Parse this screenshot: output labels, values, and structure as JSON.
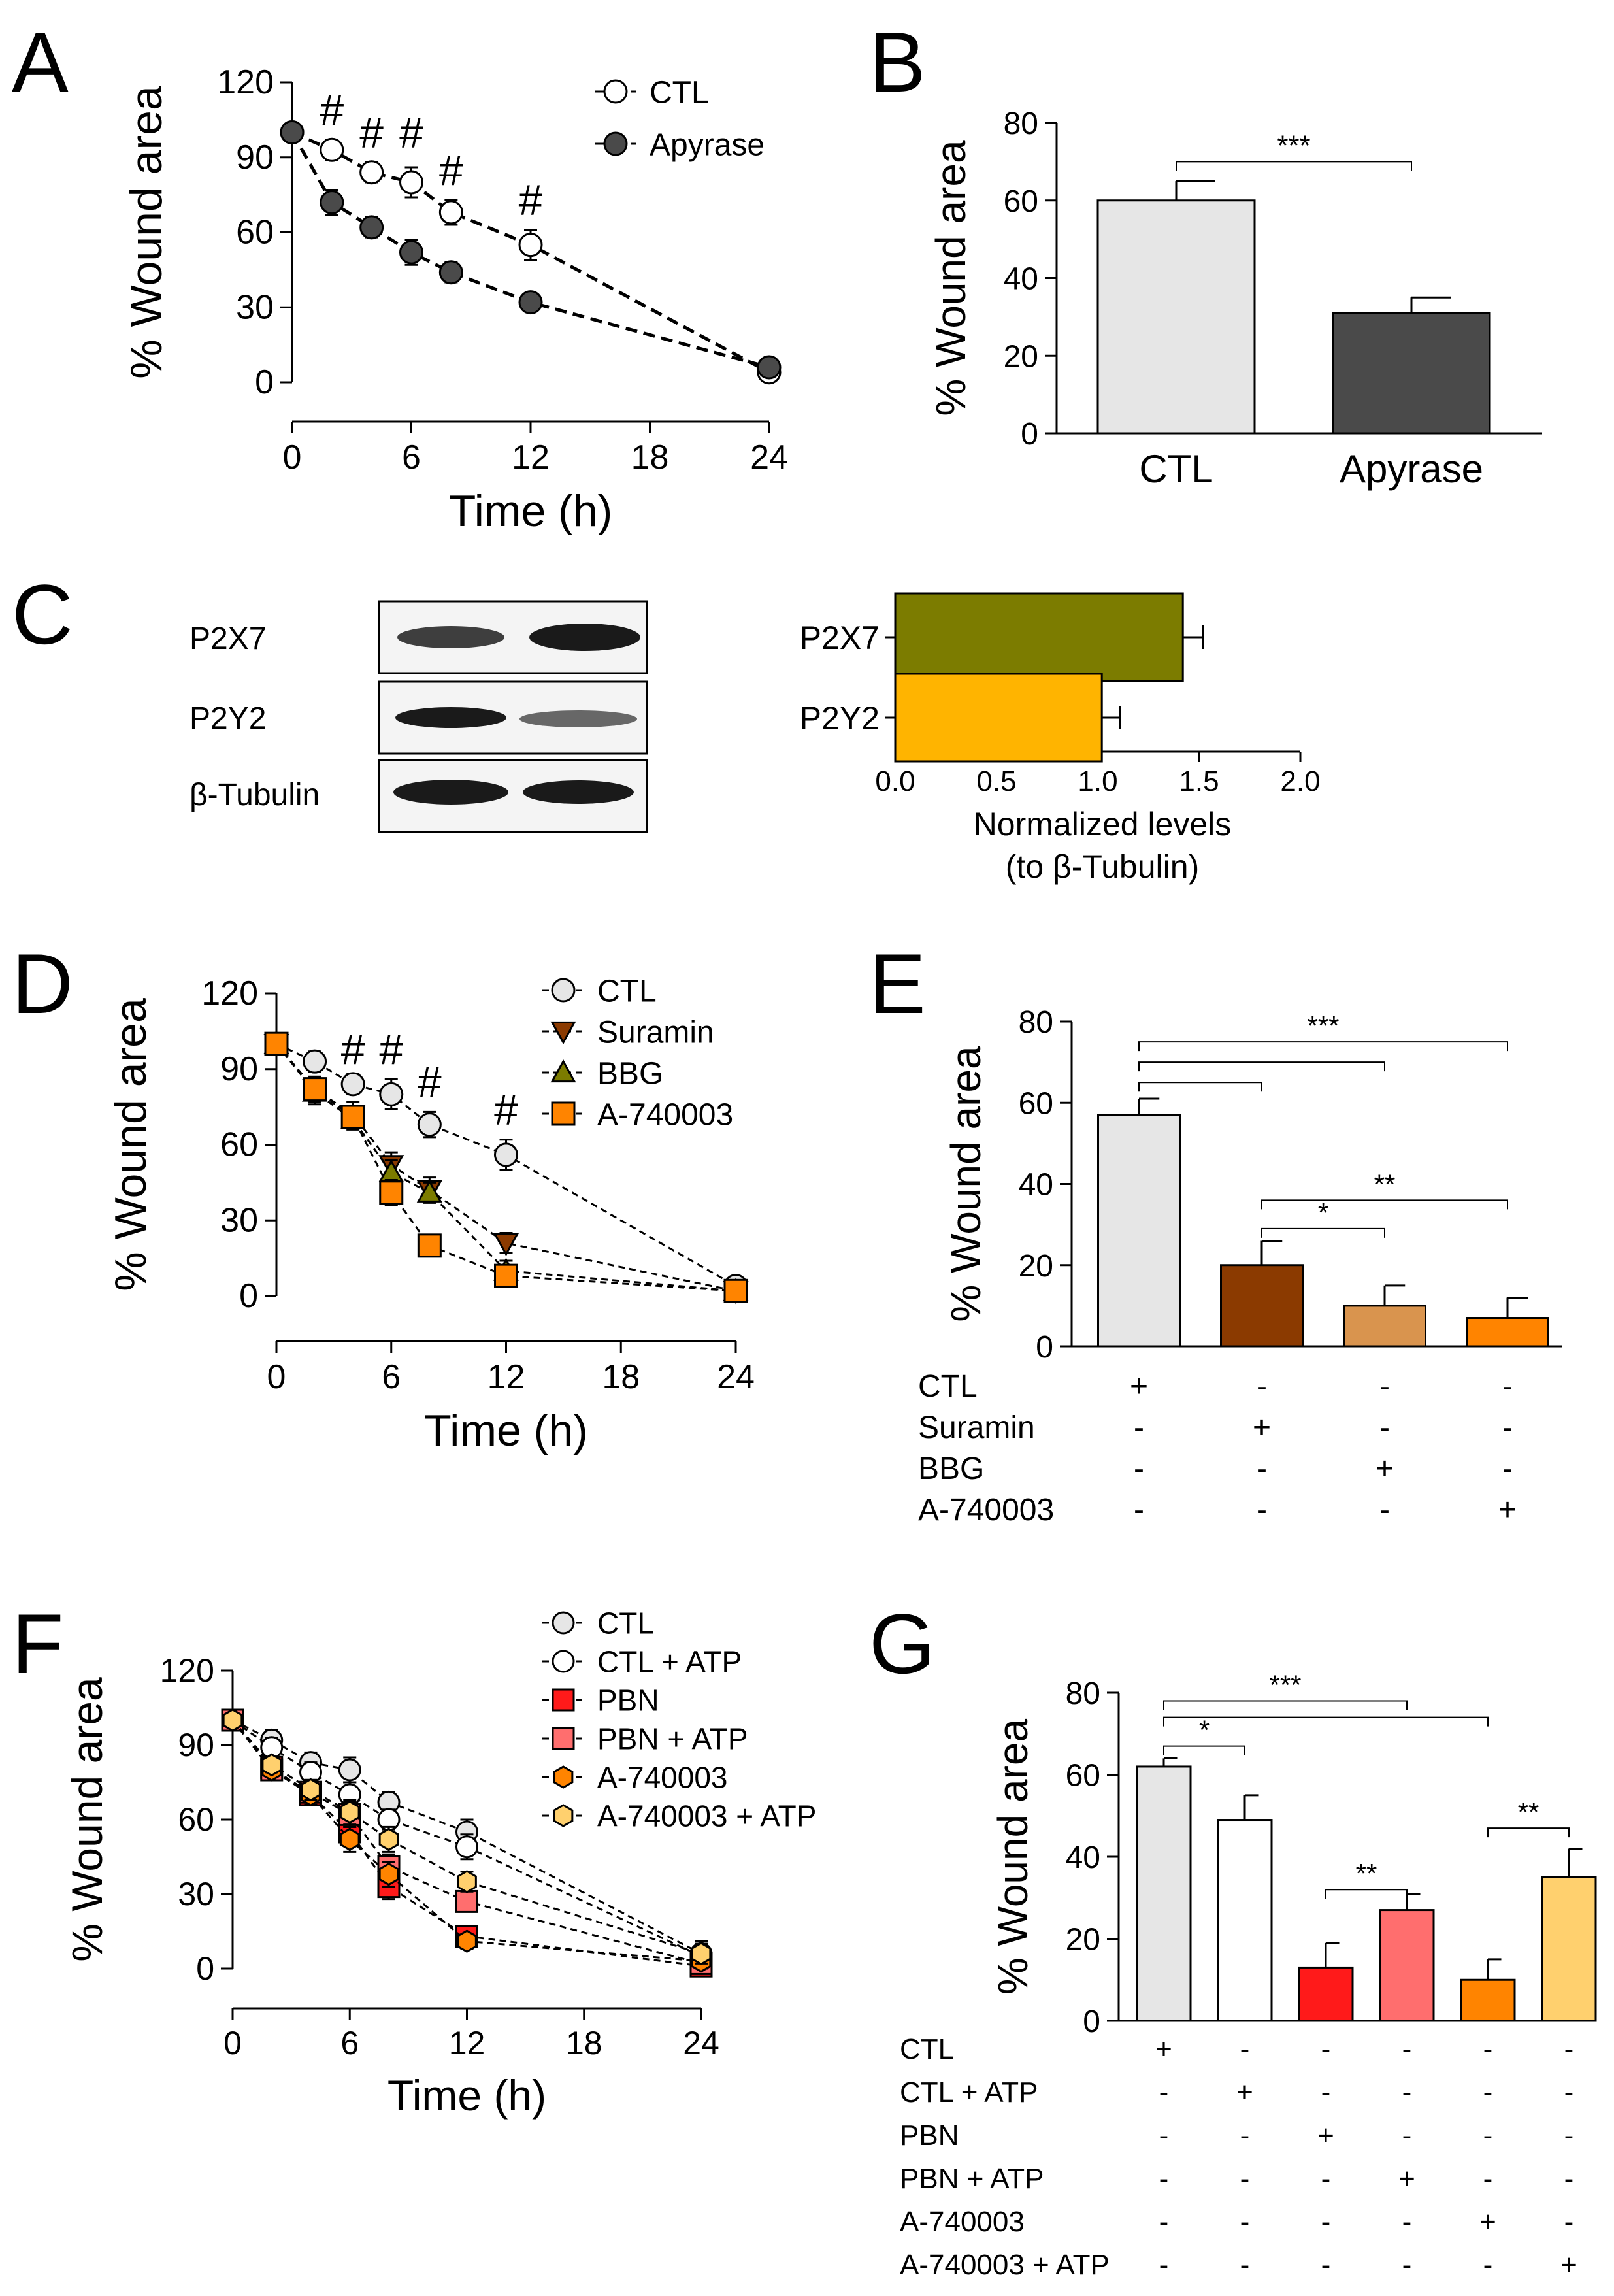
{
  "colors": {
    "black": "#000000",
    "ctl_light": "#e6e6e6",
    "apyrase_dark": "#4a4a4a",
    "white": "#ffffff",
    "p2x7_olive": "#7c7c00",
    "p2y2_yellow": "#ffb400",
    "suramin_brown": "#8b3a00",
    "bbg_tan": "#d9944e",
    "a740003_orange": "#ff8400",
    "bbg_olive": "#7c7c00",
    "pbn_red": "#ff1a1a",
    "pbn_atp_pink": "#ff6e6e",
    "a740003_atp_lightorange": "#ffd06e",
    "blot_bg": "#f4f4f4",
    "band": "#1e1e1e"
  },
  "chart_data": [
    {
      "panel_label": "A",
      "type": "line",
      "xlabel": "Time (h)",
      "ylabel": "% Wound area",
      "xlim": [
        0,
        24
      ],
      "ylim": [
        0,
        120
      ],
      "xticks": [
        0,
        6,
        12,
        18,
        24
      ],
      "xtick_labels": [
        "0",
        "6",
        "12",
        "18",
        "24"
      ],
      "yticks": [
        0,
        30,
        60,
        90,
        120
      ],
      "ytick_labels": [
        "0",
        "30",
        "60",
        "90",
        "120"
      ],
      "series": [
        {
          "name": "CTL",
          "marker": "circle",
          "fill": "#ffffff",
          "x": [
            0,
            2,
            4,
            6,
            8,
            12,
            24
          ],
          "y": [
            100,
            93,
            84,
            80,
            68,
            55,
            4
          ],
          "err": [
            0,
            4,
            4,
            6,
            5,
            6,
            3
          ]
        },
        {
          "name": "Apyrase",
          "marker": "circle",
          "fill": "#4a4a4a",
          "x": [
            0,
            2,
            4,
            6,
            8,
            12,
            24
          ],
          "y": [
            100,
            72,
            62,
            52,
            44,
            32,
            6
          ],
          "err": [
            0,
            5,
            4,
            5,
            4,
            3,
            3
          ]
        }
      ],
      "annotations": [
        {
          "text": "#",
          "x": 2,
          "y": 103
        },
        {
          "text": "#",
          "x": 4,
          "y": 94
        },
        {
          "text": "#",
          "x": 6,
          "y": 94
        },
        {
          "text": "#",
          "x": 8,
          "y": 79
        },
        {
          "text": "#",
          "x": 12,
          "y": 67
        }
      ]
    },
    {
      "panel_label": "B",
      "type": "bar",
      "ylabel": "% Wound area",
      "ylim": [
        0,
        80
      ],
      "yticks": [
        0,
        20,
        40,
        60,
        80
      ],
      "ytick_labels": [
        "0",
        "20",
        "40",
        "60",
        "80"
      ],
      "categories": [
        "CTL",
        "Apyrase"
      ],
      "values": [
        60,
        31
      ],
      "errors": [
        5,
        4
      ],
      "fills": [
        "#e6e6e6",
        "#4a4a4a"
      ],
      "significance": [
        {
          "from": 0,
          "to": 1,
          "label": "***",
          "level": 70
        }
      ]
    },
    {
      "panel_label": "C",
      "type": "bar",
      "orientation": "horizontal",
      "xlabel": "Normalized levels",
      "xlabel2": "(to β-Tubulin)",
      "xlim": [
        0,
        2
      ],
      "xticks": [
        0,
        0.5,
        1,
        1.5,
        2
      ],
      "xtick_labels": [
        "0.0",
        "0.5",
        "1.0",
        "1.5",
        "2.0"
      ],
      "categories": [
        "P2X7",
        "P2Y2"
      ],
      "values": [
        1.42,
        1.02
      ],
      "errors": [
        0.1,
        0.09
      ],
      "fills": [
        "#7c7c00",
        "#ffb400"
      ]
    },
    {
      "panel_label": "D",
      "type": "line",
      "xlabel": "Time (h)",
      "ylabel": "% Wound area",
      "xlim": [
        0,
        24
      ],
      "ylim": [
        0,
        120
      ],
      "xticks": [
        0,
        6,
        12,
        18,
        24
      ],
      "xtick_labels": [
        "0",
        "6",
        "12",
        "18",
        "24"
      ],
      "yticks": [
        0,
        30,
        60,
        90,
        120
      ],
      "ytick_labels": [
        "0",
        "30",
        "60",
        "90",
        "120"
      ],
      "series": [
        {
          "name": "CTL",
          "marker": "circle",
          "fill": "#e6e6e6",
          "x": [
            0,
            2,
            4,
            6,
            8,
            12,
            24
          ],
          "y": [
            100,
            93,
            84,
            80,
            68,
            56,
            4
          ],
          "err": [
            0,
            4,
            4,
            6,
            5,
            6,
            3
          ]
        },
        {
          "name": "Suramin",
          "marker": "triangle-down",
          "fill": "#8b3a00",
          "x": [
            0,
            2,
            4,
            6,
            8,
            12,
            24
          ],
          "y": [
            100,
            82,
            72,
            52,
            42,
            21,
            2
          ],
          "err": [
            0,
            5,
            5,
            5,
            5,
            4,
            2
          ]
        },
        {
          "name": "BBG",
          "marker": "triangle-up",
          "fill": "#7c7c00",
          "x": [
            0,
            2,
            4,
            6,
            8,
            12,
            24
          ],
          "y": [
            100,
            81,
            70,
            49,
            41,
            10,
            2
          ],
          "err": [
            0,
            5,
            4,
            5,
            4,
            4,
            2
          ]
        },
        {
          "name": "A-740003",
          "marker": "square",
          "fill": "#ff8400",
          "x": [
            0,
            2,
            4,
            6,
            8,
            12,
            24
          ],
          "y": [
            100,
            82,
            71,
            41,
            20,
            8,
            2
          ],
          "err": [
            0,
            5,
            4,
            5,
            3,
            3,
            2
          ]
        }
      ],
      "annotations": [
        {
          "text": "#",
          "x": 4,
          "y": 92
        },
        {
          "text": "#",
          "x": 6,
          "y": 92
        },
        {
          "text": "#",
          "x": 8,
          "y": 79
        },
        {
          "text": "#",
          "x": 12,
          "y": 68
        }
      ]
    },
    {
      "panel_label": "E",
      "type": "bar",
      "ylabel": "% Wound area",
      "ylim": [
        0,
        80
      ],
      "yticks": [
        0,
        20,
        40,
        60,
        80
      ],
      "ytick_labels": [
        "0",
        "20",
        "40",
        "60",
        "80"
      ],
      "categories": [
        "CTL",
        "Suramin",
        "BBG",
        "A-740003"
      ],
      "values": [
        57,
        20,
        10,
        7
      ],
      "errors": [
        4,
        6,
        5,
        5
      ],
      "fills": [
        "#e6e6e6",
        "#8b3a00",
        "#d9944e",
        "#ff8400"
      ],
      "significance": [
        {
          "from": 0,
          "to": 3,
          "label": "***",
          "level": 75
        },
        {
          "from": 0,
          "to": 2,
          "label": "",
          "level": 70
        },
        {
          "from": 0,
          "to": 1,
          "label": "",
          "level": 65
        },
        {
          "from": 1,
          "to": 3,
          "label": "**",
          "level": 36
        },
        {
          "from": 1,
          "to": 2,
          "label": "*",
          "level": 29
        }
      ],
      "treatment_rows": [
        "CTL",
        "Suramin",
        "BBG",
        "A-740003"
      ],
      "treatment_matrix": [
        [
          "+",
          "-",
          "-",
          "-"
        ],
        [
          "-",
          "+",
          "-",
          "-"
        ],
        [
          "-",
          "-",
          "+",
          "-"
        ],
        [
          "-",
          "-",
          "-",
          "+"
        ]
      ]
    },
    {
      "panel_label": "F",
      "type": "line",
      "xlabel": "Time (h)",
      "ylabel": "% Wound area",
      "xlim": [
        0,
        24
      ],
      "ylim": [
        0,
        120
      ],
      "xticks": [
        0,
        6,
        12,
        18,
        24
      ],
      "xtick_labels": [
        "0",
        "6",
        "12",
        "18",
        "24"
      ],
      "yticks": [
        0,
        30,
        60,
        90,
        120
      ],
      "ytick_labels": [
        "0",
        "30",
        "60",
        "90",
        "120"
      ],
      "series": [
        {
          "name": "CTL",
          "marker": "circle",
          "fill": "#e6e6e6",
          "x": [
            0,
            2,
            4,
            6,
            8,
            12,
            24
          ],
          "y": [
            100,
            92,
            83,
            80,
            67,
            55,
            6
          ],
          "err": [
            0,
            4,
            4,
            5,
            4,
            5,
            5
          ]
        },
        {
          "name": "CTL + ATP",
          "marker": "circle",
          "fill": "#ffffff",
          "x": [
            0,
            2,
            4,
            6,
            8,
            12,
            24
          ],
          "y": [
            100,
            89,
            79,
            70,
            60,
            49,
            5
          ],
          "err": [
            0,
            4,
            4,
            5,
            4,
            5,
            4
          ]
        },
        {
          "name": "PBN",
          "marker": "square",
          "fill": "#ff1a1a",
          "x": [
            0,
            2,
            4,
            6,
            8,
            12,
            24
          ],
          "y": [
            100,
            81,
            70,
            55,
            33,
            13,
            1
          ],
          "err": [
            0,
            3,
            4,
            5,
            5,
            4,
            2
          ]
        },
        {
          "name": "PBN + ATP",
          "marker": "square",
          "fill": "#ff6e6e",
          "x": [
            0,
            2,
            4,
            6,
            8,
            12,
            24
          ],
          "y": [
            100,
            80,
            71,
            62,
            41,
            27,
            2
          ],
          "err": [
            0,
            3,
            4,
            5,
            5,
            4,
            2
          ]
        },
        {
          "name": "A-740003",
          "marker": "hexagon",
          "fill": "#ff8400",
          "x": [
            0,
            2,
            4,
            6,
            8,
            12,
            24
          ],
          "y": [
            100,
            80,
            70,
            52,
            38,
            11,
            3
          ],
          "err": [
            0,
            3,
            4,
            5,
            5,
            3,
            3
          ]
        },
        {
          "name": "A-740003 + ATP",
          "marker": "hexagon",
          "fill": "#ffd06e",
          "x": [
            0,
            2,
            4,
            6,
            8,
            12,
            24
          ],
          "y": [
            100,
            82,
            72,
            63,
            52,
            35,
            6
          ],
          "err": [
            0,
            3,
            4,
            5,
            5,
            4,
            4
          ]
        }
      ]
    },
    {
      "panel_label": "G",
      "type": "bar",
      "ylabel": "% Wound area",
      "ylim": [
        0,
        80
      ],
      "yticks": [
        0,
        20,
        40,
        60,
        80
      ],
      "ytick_labels": [
        "0",
        "20",
        "40",
        "60",
        "80"
      ],
      "categories": [
        "CTL",
        "CTL + ATP",
        "PBN",
        "PBN + ATP",
        "A-740003",
        "A-740003 + ATP"
      ],
      "values": [
        62,
        49,
        13,
        27,
        10,
        35
      ],
      "errors": [
        2,
        6,
        6,
        4,
        5,
        7
      ],
      "fills": [
        "#e6e6e6",
        "#ffffff",
        "#ff1a1a",
        "#ff6e6e",
        "#ff8400",
        "#ffd06e"
      ],
      "significance": [
        {
          "from": 0,
          "to": 3,
          "label": "***",
          "level": 78
        },
        {
          "from": 0,
          "to": 4,
          "label": "",
          "level": 74
        },
        {
          "from": 0,
          "to": 1,
          "label": "*",
          "level": 67
        },
        {
          "from": 2,
          "to": 3,
          "label": "**",
          "level": 32
        },
        {
          "from": 4,
          "to": 5,
          "label": "**",
          "level": 47
        }
      ],
      "treatment_rows": [
        "CTL",
        "CTL + ATP",
        "PBN",
        "PBN + ATP",
        "A-740003",
        "A-740003 + ATP"
      ],
      "treatment_matrix": [
        [
          "+",
          "-",
          "-",
          "-",
          "-",
          "-"
        ],
        [
          "-",
          "+",
          "-",
          "-",
          "-",
          "-"
        ],
        [
          "-",
          "-",
          "+",
          "-",
          "-",
          "-"
        ],
        [
          "-",
          "-",
          "-",
          "+",
          "-",
          "-"
        ],
        [
          "-",
          "-",
          "-",
          "-",
          "+",
          "-"
        ],
        [
          "-",
          "-",
          "-",
          "-",
          "-",
          "+"
        ]
      ]
    }
  ],
  "blot": {
    "labels": [
      "P2X7",
      "P2Y2",
      "β-Tubulin"
    ]
  }
}
